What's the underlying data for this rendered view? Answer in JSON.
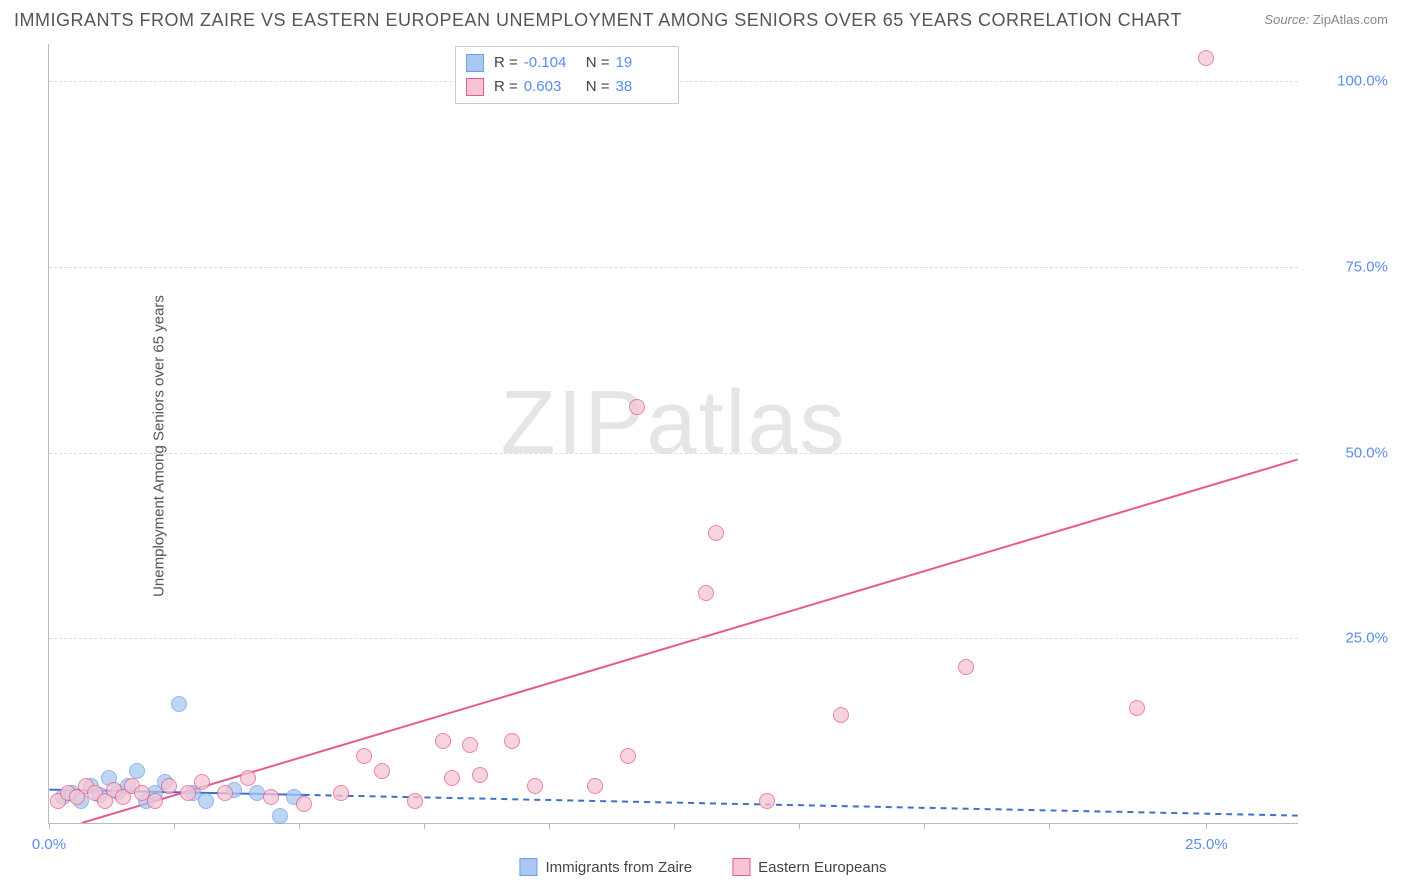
{
  "title": "IMMIGRANTS FROM ZAIRE VS EASTERN EUROPEAN UNEMPLOYMENT AMONG SENIORS OVER 65 YEARS CORRELATION CHART",
  "source_label": "Source:",
  "source_value": "ZipAtlas.com",
  "ylabel": "Unemployment Among Seniors over 65 years",
  "watermark_a": "ZIP",
  "watermark_b": "atlas",
  "chart": {
    "type": "scatter",
    "background_color": "#ffffff",
    "grid_color": "#dddddd",
    "grid_dash": "4,4",
    "axis_color": "#bbbbbb",
    "tick_label_color": "#5b8def",
    "tick_fontsize": 15,
    "title_fontsize": 18,
    "label_fontsize": 15,
    "xlim": [
      0,
      27
    ],
    "ylim": [
      0,
      105
    ],
    "ytick_step": 25,
    "ytick_labels": [
      "25.0%",
      "50.0%",
      "75.0%",
      "100.0%"
    ],
    "xtick_positions": [
      0,
      2.7,
      5.4,
      8.1,
      10.8,
      13.5,
      16.2,
      18.9,
      21.6,
      25
    ],
    "xtick_labels": {
      "0": "0.0%",
      "25": "25.0%"
    },
    "marker_radius": 8,
    "marker_stroke_width": 1.2,
    "series": [
      {
        "name": "Immigrants from Zaire",
        "color_fill": "#a9c7f0",
        "color_stroke": "#6fa0e6",
        "R": "-0.104",
        "N": "19",
        "trend": {
          "x1": 0,
          "y1": 4.5,
          "x2": 27,
          "y2": 1.0,
          "color": "#3f6fc9",
          "width": 2,
          "dash": "6,5",
          "solid_until_x": 5.5
        },
        "points": [
          {
            "x": 0.3,
            "y": 3.5
          },
          {
            "x": 0.5,
            "y": 4.0
          },
          {
            "x": 0.7,
            "y": 3.0
          },
          {
            "x": 0.9,
            "y": 5.0
          },
          {
            "x": 1.1,
            "y": 3.8
          },
          {
            "x": 1.3,
            "y": 6.0
          },
          {
            "x": 1.5,
            "y": 4.2
          },
          {
            "x": 1.7,
            "y": 5.0
          },
          {
            "x": 1.9,
            "y": 7.0
          },
          {
            "x": 2.1,
            "y": 3.0
          },
          {
            "x": 2.3,
            "y": 4.0
          },
          {
            "x": 2.5,
            "y": 5.5
          },
          {
            "x": 2.8,
            "y": 16.0
          },
          {
            "x": 3.1,
            "y": 4.0
          },
          {
            "x": 3.4,
            "y": 3.0
          },
          {
            "x": 4.0,
            "y": 4.5
          },
          {
            "x": 4.5,
            "y": 4.0
          },
          {
            "x": 5.0,
            "y": 1.0
          },
          {
            "x": 5.3,
            "y": 3.5
          }
        ]
      },
      {
        "name": "Eastern Europeans",
        "color_fill": "#f5c5d3",
        "color_stroke": "#e75a8d",
        "R": "0.603",
        "N": "38",
        "trend": {
          "x1": 0.7,
          "y1": 0,
          "x2": 27,
          "y2": 49,
          "color": "#e75a8d",
          "width": 2,
          "dash": "",
          "solid_until_x": 27
        },
        "points": [
          {
            "x": 0.2,
            "y": 3.0
          },
          {
            "x": 0.4,
            "y": 4.0
          },
          {
            "x": 0.6,
            "y": 3.5
          },
          {
            "x": 0.8,
            "y": 5.0
          },
          {
            "x": 1.0,
            "y": 4.0
          },
          {
            "x": 1.2,
            "y": 3.0
          },
          {
            "x": 1.4,
            "y": 4.5
          },
          {
            "x": 1.6,
            "y": 3.5
          },
          {
            "x": 1.8,
            "y": 5.0
          },
          {
            "x": 2.0,
            "y": 4.0
          },
          {
            "x": 2.3,
            "y": 3.0
          },
          {
            "x": 2.6,
            "y": 5.0
          },
          {
            "x": 3.0,
            "y": 4.0
          },
          {
            "x": 3.3,
            "y": 5.5
          },
          {
            "x": 3.8,
            "y": 4.0
          },
          {
            "x": 4.3,
            "y": 6.0
          },
          {
            "x": 4.8,
            "y": 3.5
          },
          {
            "x": 5.5,
            "y": 2.5
          },
          {
            "x": 6.3,
            "y": 4.0
          },
          {
            "x": 6.8,
            "y": 9.0
          },
          {
            "x": 7.2,
            "y": 7.0
          },
          {
            "x": 7.9,
            "y": 3.0
          },
          {
            "x": 8.5,
            "y": 11.0
          },
          {
            "x": 8.7,
            "y": 6.0
          },
          {
            "x": 9.1,
            "y": 10.5
          },
          {
            "x": 9.3,
            "y": 6.5
          },
          {
            "x": 10.0,
            "y": 11.0
          },
          {
            "x": 10.5,
            "y": 5.0
          },
          {
            "x": 11.8,
            "y": 5.0
          },
          {
            "x": 12.5,
            "y": 9.0
          },
          {
            "x": 12.7,
            "y": 56.0
          },
          {
            "x": 14.2,
            "y": 31.0
          },
          {
            "x": 14.4,
            "y": 39.0
          },
          {
            "x": 15.5,
            "y": 3.0
          },
          {
            "x": 17.1,
            "y": 14.5
          },
          {
            "x": 19.8,
            "y": 21.0
          },
          {
            "x": 23.5,
            "y": 15.5
          },
          {
            "x": 25.0,
            "y": 103.0
          }
        ]
      }
    ]
  },
  "stats_legend": {
    "r_label": "R =",
    "n_label": "N ="
  },
  "bottom_legend": [
    "Immigrants from Zaire",
    "Eastern Europeans"
  ]
}
